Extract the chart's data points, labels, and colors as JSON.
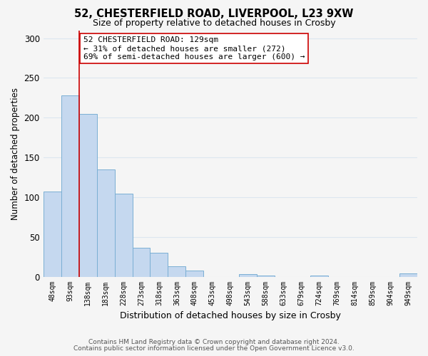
{
  "title": "52, CHESTERFIELD ROAD, LIVERPOOL, L23 9XW",
  "subtitle": "Size of property relative to detached houses in Crosby",
  "xlabel": "Distribution of detached houses by size in Crosby",
  "ylabel": "Number of detached properties",
  "bar_labels": [
    "48sqm",
    "93sqm",
    "138sqm",
    "183sqm",
    "228sqm",
    "273sqm",
    "318sqm",
    "363sqm",
    "408sqm",
    "453sqm",
    "498sqm",
    "543sqm",
    "588sqm",
    "633sqm",
    "679sqm",
    "724sqm",
    "769sqm",
    "814sqm",
    "859sqm",
    "904sqm",
    "949sqm"
  ],
  "bar_values": [
    107,
    228,
    205,
    135,
    104,
    36,
    30,
    13,
    8,
    0,
    0,
    3,
    1,
    0,
    0,
    1,
    0,
    0,
    0,
    0,
    4
  ],
  "bar_color": "#c5d8ef",
  "bar_edge_color": "#7aafd4",
  "vline_x_index": 2,
  "vline_color": "#cc0000",
  "annotation_text": "52 CHESTERFIELD ROAD: 129sqm\n← 31% of detached houses are smaller (272)\n69% of semi-detached houses are larger (600) →",
  "ylim": [
    0,
    310
  ],
  "yticks": [
    0,
    50,
    100,
    150,
    200,
    250,
    300
  ],
  "footer_line1": "Contains HM Land Registry data © Crown copyright and database right 2024.",
  "footer_line2": "Contains public sector information licensed under the Open Government Licence v3.0.",
  "bg_color": "#f5f5f5",
  "grid_color": "#dce6f0"
}
